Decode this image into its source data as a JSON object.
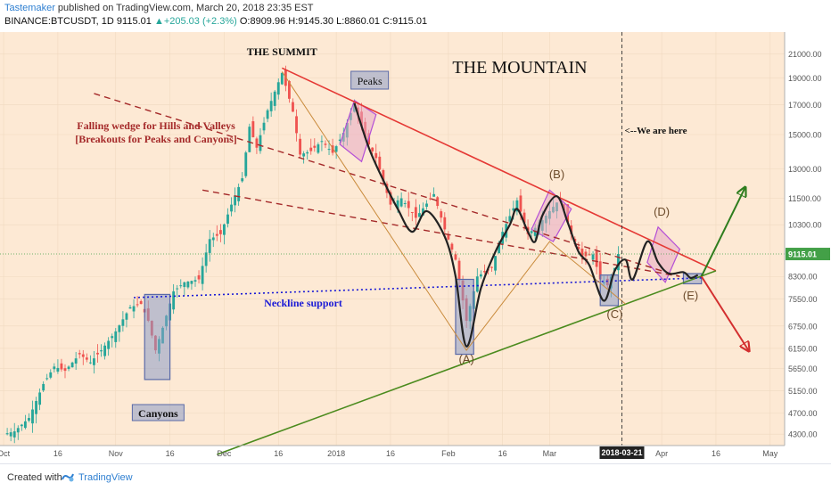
{
  "header": {
    "author": "Tastemaker",
    "published_text": "published on TradingView.com, March 20, 2018 23:35 EST",
    "symbol": "BINANCE:BTCUSDT, 1D",
    "last": "9115.01",
    "change": "▲+205.03 (+2.3%)",
    "open": "O:8909.96",
    "high": "H:9145.30",
    "low": "L:8860.01",
    "close": "C:9115.01"
  },
  "footer": {
    "created_with": "Created with",
    "brand": "TradingView"
  },
  "colors": {
    "background": "#fde9d4",
    "up_candle": "#26a69a",
    "down_candle": "#ef5350",
    "resistance": "#e53935",
    "support": "#4b8b1e",
    "wedge": "#a52a2a",
    "neckline": "#1a1ad6",
    "path": "#222222",
    "box_blue": "#8c9dc6",
    "box_pink": "#e7a9c2",
    "price_label_bg": "#43a047"
  },
  "chart_data": {
    "type": "candlestick",
    "title": "THE MOUNTAIN",
    "symbol": "BINANCE:BTCUSDT",
    "interval": "1D",
    "x_axis_ticks": [
      "Oct",
      "16",
      "Nov",
      "16",
      "Dec",
      "16",
      "2018",
      "16",
      "Feb",
      "16",
      "Mar",
      "2018-03-21",
      "Apr",
      "16",
      "May"
    ],
    "x_axis_dates": [
      "2017-10-01",
      "2017-10-16",
      "2017-11-01",
      "2017-11-16",
      "2017-12-01",
      "2017-12-16",
      "2018-01-01",
      "2018-01-16",
      "2018-02-01",
      "2018-02-16",
      "2018-03-01",
      "2018-03-21",
      "2018-04-01",
      "2018-04-16",
      "2018-05-01"
    ],
    "y_axis_ticks": [
      "21000.00",
      "19000.00",
      "17000.00",
      "15000.00",
      "13000.00",
      "11500.00",
      "10300.00",
      "9115.01",
      "8300.00",
      "7550.00",
      "6750.00",
      "6150.00",
      "5650.00",
      "5150.00",
      "4700.00",
      "4300.00"
    ],
    "y_axis_values": [
      21000,
      19000,
      17000,
      15000,
      13000,
      11500,
      10300,
      9115.01,
      8300,
      7550,
      6750,
      6150,
      5650,
      5150,
      4700,
      4300
    ],
    "y_scale": "log",
    "ylim": [
      4100,
      23000
    ],
    "last_price": "9115.01",
    "last_price_value": 9115.01,
    "current_date": "2018-03-21",
    "annotations": {
      "summit": "THE SUMMIT",
      "peaks": "Peaks",
      "canyons": "Canyons",
      "wedge_line1": "Falling wedge for Hills and Valleys",
      "wedge_line2": "[Breakouts for Peaks and Canyons]",
      "neckline": "Neckline support",
      "we_are_here": "<--We are here",
      "wave_a": "(A)",
      "wave_b": "(B)",
      "wave_c": "(C)",
      "wave_d": "(D)",
      "wave_e": "(E)"
    },
    "trendlines": [
      {
        "name": "resistance",
        "from": [
          "2017-12-17",
          19800
        ],
        "to": [
          "2018-04-16",
          8500
        ]
      },
      {
        "name": "support",
        "from": [
          "2017-11-29",
          3950
        ],
        "to": [
          "2018-04-16",
          8500
        ]
      },
      {
        "name": "wedge-upper",
        "from": [
          "2017-10-26",
          17800
        ],
        "to": [
          "2018-04-06",
          8300
        ]
      },
      {
        "name": "wedge-lower",
        "from": [
          "2017-11-25",
          11900
        ],
        "to": [
          "2018-04-06",
          8300
        ]
      },
      {
        "name": "neckline",
        "from": [
          "2017-11-06",
          7600
        ],
        "to": [
          "2018-04-12",
          8250
        ]
      }
    ],
    "wave_path": [
      [
        "2018-01-06",
        17100
      ],
      [
        "2018-01-10",
        14200
      ],
      [
        "2018-01-14",
        12400
      ],
      [
        "2018-01-18",
        11000
      ],
      [
        "2018-01-22",
        10000
      ],
      [
        "2018-01-26",
        10900
      ],
      [
        "2018-01-31",
        9800
      ],
      [
        "2018-02-03",
        8300
      ],
      [
        "2018-02-06",
        6200
      ],
      [
        "2018-02-10",
        7900
      ],
      [
        "2018-02-14",
        9200
      ],
      [
        "2018-02-18",
        10300
      ],
      [
        "2018-02-20",
        11000
      ],
      [
        "2018-02-23",
        10000
      ],
      [
        "2018-02-25",
        9600
      ],
      [
        "2018-02-27",
        10700
      ],
      [
        "2018-03-03",
        11600
      ],
      [
        "2018-03-06",
        10400
      ],
      [
        "2018-03-09",
        9200
      ],
      [
        "2018-03-12",
        8700
      ],
      [
        "2018-03-16",
        7500
      ],
      [
        "2018-03-19",
        8500
      ],
      [
        "2018-03-22",
        8900
      ],
      [
        "2018-03-24",
        8200
      ],
      [
        "2018-03-28",
        9600
      ],
      [
        "2018-03-31",
        8800
      ],
      [
        "2018-04-03",
        8400
      ],
      [
        "2018-04-07",
        8450
      ],
      [
        "2018-04-09",
        8250
      ],
      [
        "2018-04-11",
        8350
      ]
    ],
    "zigzag_path": [
      [
        "2017-12-17",
        19500
      ],
      [
        "2018-02-06",
        6100
      ],
      [
        "2018-03-01",
        9600
      ],
      [
        "2018-03-22",
        7400
      ]
    ],
    "projections": [
      {
        "name": "bull",
        "from": [
          "2018-04-12",
          8300
        ],
        "to": [
          "2018-04-24",
          12000
        ]
      },
      {
        "name": "bear",
        "from": [
          "2018-04-12",
          8300
        ],
        "to": [
          "2018-04-25",
          6100
        ]
      }
    ],
    "price_series": [
      [
        "2017-10-01",
        4300
      ],
      [
        "2017-10-04",
        4350
      ],
      [
        "2017-10-08",
        4600
      ],
      [
        "2017-10-12",
        5300
      ],
      [
        "2017-10-15",
        5700
      ],
      [
        "2017-10-18",
        5600
      ],
      [
        "2017-10-22",
        6000
      ],
      [
        "2017-10-25",
        5800
      ],
      [
        "2017-10-28",
        6100
      ],
      [
        "2017-11-01",
        6600
      ],
      [
        "2017-11-05",
        7300
      ],
      [
        "2017-11-08",
        7400
      ],
      [
        "2017-11-10",
        6900
      ],
      [
        "2017-11-12",
        6100
      ],
      [
        "2017-11-14",
        6700
      ],
      [
        "2017-11-17",
        7800
      ],
      [
        "2017-11-20",
        8100
      ],
      [
        "2017-11-24",
        8200
      ],
      [
        "2017-11-27",
        9700
      ],
      [
        "2017-11-30",
        9900
      ],
      [
        "2017-12-03",
        11200
      ],
      [
        "2017-12-06",
        12500
      ],
      [
        "2017-12-08",
        15500
      ],
      [
        "2017-12-10",
        14200
      ],
      [
        "2017-12-13",
        16600
      ],
      [
        "2017-12-17",
        19400
      ],
      [
        "2017-12-20",
        16500
      ],
      [
        "2017-12-22",
        13800
      ],
      [
        "2017-12-25",
        14000
      ],
      [
        "2017-12-28",
        14600
      ],
      [
        "2017-12-31",
        13900
      ],
      [
        "2018-01-03",
        15100
      ],
      [
        "2018-01-06",
        17100
      ],
      [
        "2018-01-09",
        14800
      ],
      [
        "2018-01-12",
        13600
      ],
      [
        "2018-01-16",
        11200
      ],
      [
        "2018-01-19",
        11500
      ],
      [
        "2018-01-23",
        10600
      ],
      [
        "2018-01-28",
        11700
      ],
      [
        "2018-01-31",
        10100
      ],
      [
        "2018-02-03",
        8900
      ],
      [
        "2018-02-06",
        6900
      ],
      [
        "2018-02-09",
        8300
      ],
      [
        "2018-02-13",
        8600
      ],
      [
        "2018-02-16",
        10000
      ],
      [
        "2018-02-20",
        11400
      ],
      [
        "2018-02-23",
        9900
      ],
      [
        "2018-02-26",
        10300
      ],
      [
        "2018-03-01",
        10900
      ],
      [
        "2018-03-04",
        11500
      ],
      [
        "2018-03-07",
        9900
      ],
      [
        "2018-03-10",
        9000
      ],
      [
        "2018-03-13",
        9100
      ],
      [
        "2018-03-15",
        8200
      ],
      [
        "2018-03-17",
        8000
      ],
      [
        "2018-03-19",
        8600
      ],
      [
        "2018-03-20",
        9115
      ]
    ]
  }
}
